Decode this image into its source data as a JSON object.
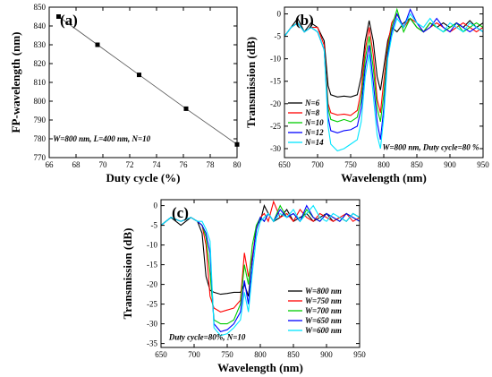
{
  "chart_data": [
    {
      "type": "line",
      "panel_label": "(a)",
      "xlabel": "Duty cycle (%)",
      "ylabel": "FP-wavelength (nm)",
      "xlim": [
        66,
        80
      ],
      "ylim": [
        770,
        850
      ],
      "xticks": [
        "66",
        "68",
        "70",
        "72",
        "74",
        "76",
        "78",
        "80"
      ],
      "yticks": [
        "770",
        "780",
        "790",
        "800",
        "810",
        "820",
        "830",
        "840",
        "850"
      ],
      "annotation": "W=800 nm, L=400 nm, N=10",
      "grid": false,
      "series": [
        {
          "x": [
            66.7,
            69.6,
            72.7,
            76.2,
            80.0
          ],
          "y": [
            845,
            830,
            814,
            796,
            777
          ]
        }
      ]
    },
    {
      "type": "line",
      "panel_label": "(b)",
      "xlabel": "Wavelength (nm)",
      "ylabel": "Transmission (dB)",
      "xlim": [
        650,
        950
      ],
      "ylim": [
        -32,
        1.5
      ],
      "xticks": [
        "650",
        "700",
        "750",
        "800",
        "850",
        "900",
        "950"
      ],
      "yticks": [
        "-30",
        "-25",
        "-20",
        "-15",
        "-10",
        "-5",
        "0"
      ],
      "annotation": "W=800 nm, Duty cycle=80 %",
      "legend_position": "bottom-left",
      "grid": false,
      "series": [
        {
          "name": "N=6",
          "color": "#000000",
          "x": [
            650,
            660,
            670,
            680,
            690,
            700,
            710,
            716,
            720,
            730,
            740,
            750,
            760,
            766,
            772,
            778,
            784,
            790,
            795,
            800,
            806,
            812,
            820,
            830,
            840,
            850,
            860,
            870,
            880,
            890,
            900,
            910,
            920,
            930,
            940,
            950
          ],
          "y": [
            -5,
            -3,
            -1,
            -4,
            -2,
            -3,
            -6,
            -16,
            -18,
            -18.5,
            -18.3,
            -18.5,
            -18,
            -14,
            -6,
            -1.5,
            -6,
            -14,
            -17,
            -12,
            -6,
            -3,
            -4,
            -2,
            -1,
            -3,
            -4,
            -2,
            -3,
            -2,
            -3,
            -2,
            -3,
            -1.5,
            -3,
            -2
          ]
        },
        {
          "name": "N=8",
          "color": "#ff0000",
          "x": [
            650,
            660,
            670,
            680,
            690,
            700,
            710,
            716,
            720,
            730,
            740,
            750,
            760,
            766,
            772,
            778,
            784,
            790,
            795,
            800,
            806,
            812,
            820,
            830,
            840,
            850,
            860,
            870,
            880,
            890,
            900,
            910,
            920,
            930,
            940,
            950
          ],
          "y": [
            -5,
            -3,
            -2,
            -4,
            -3,
            -3,
            -7,
            -20,
            -22,
            -22.5,
            -22.3,
            -22.6,
            -21.5,
            -17,
            -8,
            -3,
            -9,
            -19,
            -22,
            -15,
            -7,
            -2,
            0,
            -3,
            -1,
            -2,
            -4,
            -3,
            -2,
            -3,
            -4,
            -3,
            -2,
            -3,
            -4,
            -3
          ]
        },
        {
          "name": "N=10",
          "color": "#00cc00",
          "x": [
            650,
            660,
            670,
            680,
            690,
            700,
            710,
            716,
            720,
            730,
            740,
            750,
            760,
            766,
            772,
            778,
            784,
            790,
            795,
            800,
            806,
            812,
            820,
            830,
            840,
            850,
            860,
            870,
            880,
            890,
            900,
            910,
            920,
            930,
            940,
            950
          ],
          "y": [
            -5,
            -3,
            -2,
            -4,
            -3,
            -4,
            -8,
            -21,
            -23.5,
            -24,
            -23.5,
            -24,
            -23,
            -19,
            -10,
            -5,
            -12,
            -21,
            -24,
            -18,
            -8,
            -3,
            1,
            -4,
            -1,
            -3,
            -4,
            -2,
            -3,
            -4,
            -3,
            -2,
            -4,
            -3,
            -2,
            -3
          ]
        },
        {
          "name": "N=12",
          "color": "#0000ff",
          "x": [
            650,
            660,
            670,
            680,
            690,
            700,
            710,
            716,
            720,
            730,
            740,
            750,
            760,
            766,
            772,
            778,
            784,
            790,
            795,
            800,
            806,
            812,
            820,
            830,
            840,
            850,
            860,
            870,
            880,
            890,
            900,
            910,
            920,
            930,
            940,
            950
          ],
          "y": [
            -5,
            -3,
            -2,
            -4,
            -3,
            -4,
            -8,
            -23,
            -26,
            -26.5,
            -26,
            -25.8,
            -25,
            -21,
            -12,
            -7,
            -15,
            -24,
            -28,
            -21,
            -9,
            -4,
            0,
            -3,
            1,
            -2,
            -4,
            -3,
            -1,
            -3,
            -4,
            -2,
            -3,
            -4,
            -3,
            -4
          ]
        },
        {
          "name": "N=14",
          "color": "#00e5ff",
          "x": [
            650,
            660,
            670,
            680,
            690,
            700,
            710,
            716,
            720,
            730,
            740,
            750,
            760,
            766,
            772,
            778,
            784,
            790,
            795,
            800,
            806,
            812,
            820,
            830,
            840,
            850,
            860,
            870,
            880,
            890,
            900,
            910,
            920,
            930,
            940,
            950
          ],
          "y": [
            -5,
            -3,
            -2,
            -4,
            -3,
            -4,
            -8,
            -25,
            -29,
            -30.5,
            -30,
            -29,
            -28,
            -24,
            -14,
            -9,
            -18,
            -27,
            -30,
            -23,
            -10,
            -5,
            -1,
            -3,
            0,
            -2,
            -3,
            -1,
            -3,
            -4,
            -2,
            -3,
            -4,
            -2,
            -3,
            -4
          ]
        }
      ]
    },
    {
      "type": "line",
      "panel_label": "(c)",
      "xlabel": "Wavelength (nm)",
      "ylabel": "Transmission (dB)",
      "xlim": [
        650,
        950
      ],
      "ylim": [
        -36,
        1.5
      ],
      "xticks": [
        "650",
        "700",
        "750",
        "800",
        "850",
        "900",
        "950"
      ],
      "yticks": [
        "-35",
        "-30",
        "-25",
        "-20",
        "-15",
        "-10",
        "-5",
        "0"
      ],
      "annotation": "Duty cycle=80%,  N=10",
      "legend_position": "bottom-right",
      "grid": false,
      "series": [
        {
          "name": "W=800 nm",
          "color": "#000000",
          "x": [
            650,
            665,
            680,
            695,
            705,
            712,
            718,
            724,
            730,
            740,
            750,
            760,
            770,
            776,
            782,
            788,
            794,
            800,
            806,
            812,
            820,
            830,
            840,
            850,
            860,
            870,
            880,
            890,
            900,
            910,
            920,
            930,
            940,
            950
          ],
          "y": [
            -5,
            -3,
            -5,
            -3,
            -4,
            -7,
            -18,
            -21.5,
            -22,
            -22.5,
            -22.3,
            -22,
            -22,
            -20,
            -23,
            -14,
            -5,
            -4,
            0,
            -2,
            -4,
            -3,
            -1,
            -4,
            -3,
            -2,
            -4,
            -3,
            -2,
            -4,
            -3,
            -4,
            -2,
            -3
          ]
        },
        {
          "name": "W=750 nm",
          "color": "#ff0000",
          "x": [
            650,
            665,
            680,
            695,
            705,
            712,
            718,
            724,
            730,
            740,
            750,
            760,
            770,
            776,
            782,
            788,
            794,
            800,
            806,
            812,
            820,
            830,
            840,
            850,
            860,
            870,
            880,
            890,
            900,
            910,
            920,
            930,
            940,
            950
          ],
          "y": [
            -5,
            -3,
            -4,
            -3,
            -4,
            -5,
            -10,
            -23,
            -26,
            -27,
            -26.5,
            -26,
            -24,
            -12,
            -18,
            -13,
            -6,
            -3,
            -2,
            -4,
            1,
            -3,
            -2,
            -4,
            -1,
            -3,
            -4,
            -2,
            -3,
            -4,
            -3,
            -2,
            -4,
            -3
          ]
        },
        {
          "name": "W=700 nm",
          "color": "#00cc00",
          "x": [
            650,
            665,
            680,
            695,
            705,
            712,
            718,
            724,
            730,
            740,
            750,
            760,
            770,
            776,
            782,
            788,
            794,
            800,
            806,
            812,
            820,
            830,
            840,
            850,
            860,
            870,
            880,
            890,
            900,
            910,
            920,
            930,
            940,
            950
          ],
          "y": [
            -5,
            -3,
            -4,
            -3,
            -4,
            -5,
            -8,
            -17,
            -29,
            -30,
            -30,
            -29,
            -25,
            -15,
            -20,
            -10,
            -5,
            -3,
            -4,
            -2,
            -4,
            0,
            -3,
            -2,
            -4,
            -1,
            -3,
            -4,
            -2,
            -3,
            -4,
            -2,
            -3,
            -4
          ]
        },
        {
          "name": "W=650 nm",
          "color": "#0000ff",
          "x": [
            650,
            665,
            680,
            695,
            705,
            712,
            718,
            724,
            730,
            740,
            750,
            760,
            770,
            776,
            782,
            788,
            794,
            800,
            806,
            812,
            820,
            830,
            840,
            850,
            860,
            870,
            880,
            890,
            900,
            910,
            920,
            930,
            940,
            950
          ],
          "y": [
            -5,
            -3,
            -4,
            -3,
            -4,
            -5,
            -7,
            -12,
            -30,
            -32,
            -31.5,
            -30,
            -27,
            -19,
            -25,
            -14,
            -6,
            -3,
            -4,
            -2,
            -4,
            -1,
            -3,
            -2,
            -4,
            0,
            -3,
            -4,
            -2,
            -3,
            -4,
            -2,
            -3,
            -4
          ]
        },
        {
          "name": "W=600 nm",
          "color": "#00e5ff",
          "x": [
            650,
            665,
            680,
            695,
            705,
            712,
            718,
            724,
            730,
            740,
            750,
            760,
            770,
            776,
            782,
            788,
            794,
            800,
            806,
            812,
            820,
            830,
            840,
            850,
            860,
            870,
            880,
            890,
            900,
            910,
            920,
            930,
            940,
            950
          ],
          "y": [
            -5,
            -3,
            -4,
            -3,
            -4,
            -4,
            -6,
            -9,
            -31,
            -33,
            -32.5,
            -31,
            -29,
            -22,
            -27,
            -17,
            -8,
            -4,
            -3,
            -2,
            -4,
            -2,
            -3,
            -1,
            -4,
            -2,
            0,
            -3,
            -4,
            -2,
            -3,
            -4,
            -2,
            -3
          ]
        }
      ]
    }
  ]
}
